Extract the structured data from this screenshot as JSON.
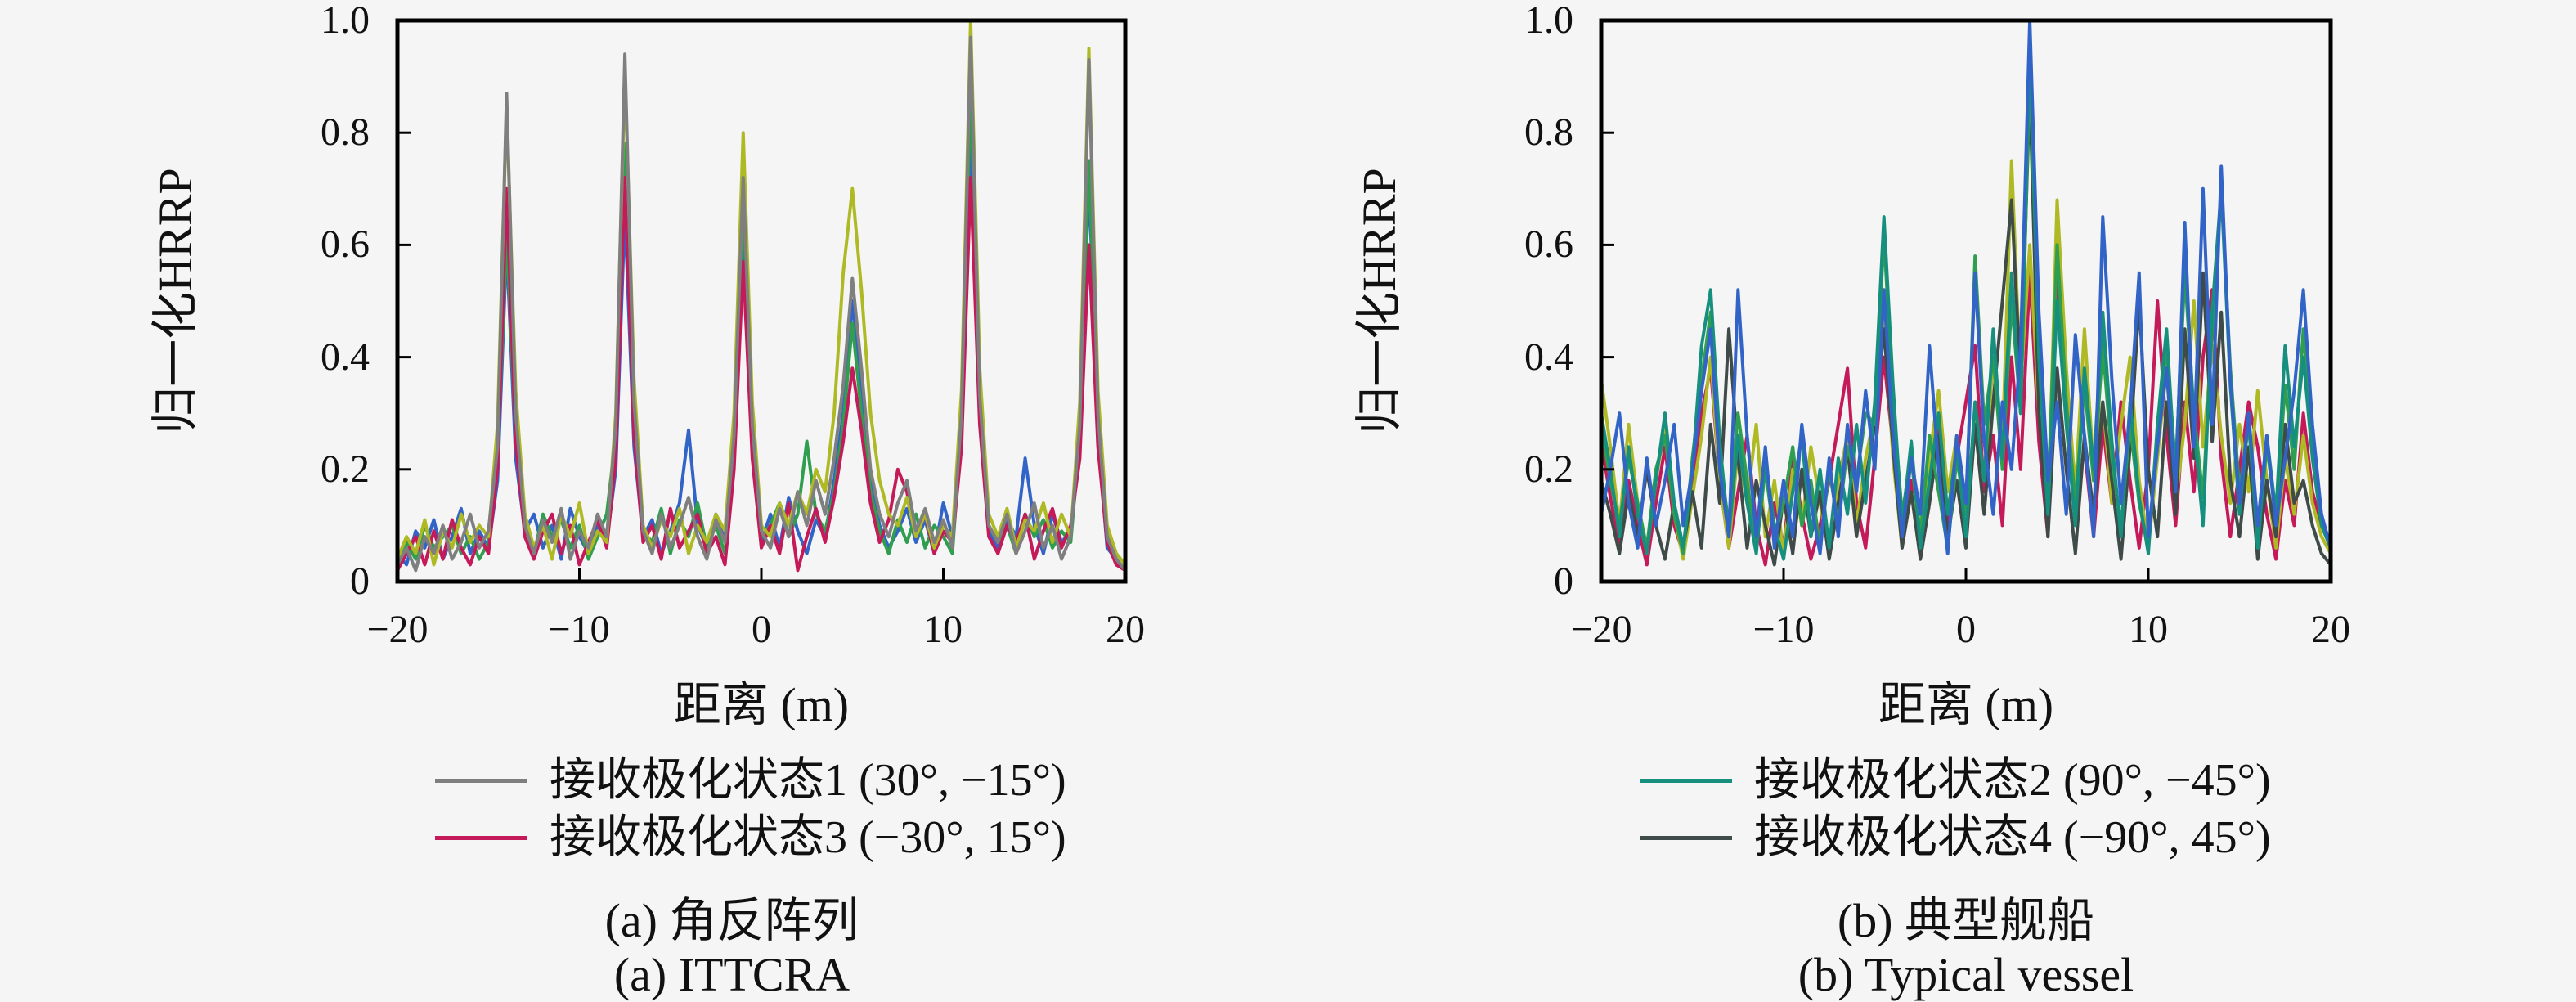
{
  "figure": {
    "background": "#f5f5f5"
  },
  "charts": [
    {
      "ylabel": "归一化HRRP",
      "xlabel": "距离 (m)",
      "yticks": [
        "0",
        "0.2",
        "0.4",
        "0.6",
        "0.8",
        "1.0"
      ],
      "xticks": [
        "−20",
        "−10",
        "0",
        "10",
        "20"
      ],
      "legend": [
        {
          "label": "接收极化状态1 (30°, −15°)",
          "color": "#7f7f7f"
        },
        {
          "label": "接收极化状态3 (−30°, 15°)",
          "color": "#c41a5a"
        }
      ],
      "caption_zh": "(a) 角反阵列",
      "caption_en": "(a) ITTCRA"
    },
    {
      "ylabel": "归一化HRRP",
      "xlabel": "距离 (m)",
      "yticks": [
        "0",
        "0.2",
        "0.4",
        "0.6",
        "0.8",
        "1.0"
      ],
      "xticks": [
        "−20",
        "−10",
        "0",
        "10",
        "20"
      ],
      "legend": [
        {
          "label": "接收极化状态2 (90°, −45°)",
          "color": "#178f7f"
        },
        {
          "label": "接收极化状态4 (−90°, 45°)",
          "color": "#3f4b49"
        }
      ],
      "caption_zh": "(b) 典型舰船",
      "caption_en": "(b) Typical vessel"
    }
  ],
  "chart_data": [
    {
      "type": "line",
      "title": "(a) 角反阵列 (a) ITTCRA",
      "xlabel": "距离 (m)",
      "ylabel": "归一化HRRP",
      "xlim": [
        -20,
        20
      ],
      "ylim": [
        0,
        1
      ],
      "x_start": -20,
      "x_step": 0.5,
      "legend_position": "below",
      "grid": false,
      "series": [
        {
          "name": "接收极化状态1 (30°, −15°)",
          "color": "#7f7f7f",
          "values": [
            0.03,
            0.06,
            0.02,
            0.08,
            0.05,
            0.1,
            0.04,
            0.07,
            0.12,
            0.06,
            0.09,
            0.24,
            0.87,
            0.3,
            0.1,
            0.05,
            0.11,
            0.07,
            0.13,
            0.04,
            0.09,
            0.06,
            0.12,
            0.08,
            0.28,
            0.94,
            0.32,
            0.09,
            0.05,
            0.12,
            0.06,
            0.1,
            0.15,
            0.08,
            0.04,
            0.11,
            0.07,
            0.26,
            0.72,
            0.28,
            0.09,
            0.06,
            0.13,
            0.08,
            0.16,
            0.1,
            0.18,
            0.12,
            0.22,
            0.35,
            0.54,
            0.38,
            0.2,
            0.12,
            0.08,
            0.14,
            0.18,
            0.09,
            0.13,
            0.07,
            0.11,
            0.06,
            0.3,
            0.97,
            0.33,
            0.1,
            0.07,
            0.12,
            0.05,
            0.09,
            0.14,
            0.06,
            0.1,
            0.04,
            0.08,
            0.28,
            0.93,
            0.3,
            0.08,
            0.04,
            0.02
          ]
        },
        {
          "name": "接收极化状态3 (−30°, 15°)",
          "color": "#c41a5a",
          "values": [
            0.02,
            0.05,
            0.08,
            0.03,
            0.09,
            0.04,
            0.11,
            0.06,
            0.03,
            0.08,
            0.05,
            0.2,
            0.7,
            0.25,
            0.08,
            0.04,
            0.09,
            0.12,
            0.05,
            0.1,
            0.03,
            0.07,
            0.11,
            0.06,
            0.22,
            0.72,
            0.26,
            0.07,
            0.1,
            0.04,
            0.13,
            0.06,
            0.09,
            0.12,
            0.05,
            0.08,
            0.03,
            0.2,
            0.57,
            0.22,
            0.06,
            0.1,
            0.05,
            0.14,
            0.02,
            0.08,
            0.13,
            0.07,
            0.15,
            0.25,
            0.38,
            0.27,
            0.14,
            0.07,
            0.11,
            0.2,
            0.16,
            0.08,
            0.12,
            0.05,
            0.09,
            0.07,
            0.24,
            0.72,
            0.28,
            0.08,
            0.05,
            0.1,
            0.07,
            0.12,
            0.04,
            0.09,
            0.13,
            0.06,
            0.1,
            0.22,
            0.6,
            0.24,
            0.07,
            0.03,
            0.02
          ]
        },
        {
          "name": "series-olive (unlabeled)",
          "color": "#aeb923",
          "values": [
            0.04,
            0.08,
            0.05,
            0.11,
            0.03,
            0.09,
            0.06,
            0.12,
            0.07,
            0.1,
            0.08,
            0.28,
            0.85,
            0.34,
            0.12,
            0.06,
            0.1,
            0.04,
            0.12,
            0.08,
            0.14,
            0.05,
            0.09,
            0.07,
            0.3,
            0.91,
            0.36,
            0.1,
            0.06,
            0.11,
            0.08,
            0.13,
            0.05,
            0.1,
            0.07,
            0.12,
            0.09,
            0.3,
            0.8,
            0.32,
            0.1,
            0.08,
            0.14,
            0.1,
            0.16,
            0.12,
            0.2,
            0.16,
            0.3,
            0.55,
            0.7,
            0.52,
            0.3,
            0.18,
            0.12,
            0.1,
            0.15,
            0.08,
            0.12,
            0.06,
            0.1,
            0.08,
            0.34,
            1.0,
            0.38,
            0.12,
            0.08,
            0.13,
            0.06,
            0.11,
            0.09,
            0.14,
            0.07,
            0.12,
            0.08,
            0.32,
            0.95,
            0.34,
            0.1,
            0.05,
            0.03
          ]
        },
        {
          "name": "series-blue (unlabeled)",
          "color": "#3264c8",
          "values": [
            0.05,
            0.03,
            0.09,
            0.06,
            0.11,
            0.04,
            0.08,
            0.13,
            0.05,
            0.09,
            0.06,
            0.18,
            0.6,
            0.22,
            0.09,
            0.12,
            0.06,
            0.1,
            0.04,
            0.13,
            0.08,
            0.05,
            0.1,
            0.07,
            0.2,
            0.66,
            0.24,
            0.08,
            0.11,
            0.05,
            0.09,
            0.14,
            0.27,
            0.1,
            0.06,
            0.12,
            0.08,
            0.22,
            0.62,
            0.24,
            0.07,
            0.12,
            0.06,
            0.15,
            0.09,
            0.05,
            0.11,
            0.08,
            0.18,
            0.3,
            0.5,
            0.34,
            0.18,
            0.1,
            0.06,
            0.09,
            0.13,
            0.07,
            0.11,
            0.05,
            0.14,
            0.08,
            0.26,
            0.8,
            0.3,
            0.09,
            0.06,
            0.11,
            0.08,
            0.22,
            0.1,
            0.05,
            0.12,
            0.07,
            0.09,
            0.24,
            0.72,
            0.26,
            0.06,
            0.04,
            0.02
          ]
        },
        {
          "name": "series-green (unlabeled)",
          "color": "#2f9e4f",
          "values": [
            0.03,
            0.07,
            0.04,
            0.1,
            0.06,
            0.08,
            0.1,
            0.05,
            0.08,
            0.04,
            0.07,
            0.22,
            0.62,
            0.26,
            0.1,
            0.05,
            0.12,
            0.08,
            0.11,
            0.06,
            0.1,
            0.04,
            0.08,
            0.12,
            0.26,
            0.78,
            0.3,
            0.09,
            0.07,
            0.13,
            0.05,
            0.11,
            0.08,
            0.14,
            0.06,
            0.1,
            0.05,
            0.24,
            0.68,
            0.26,
            0.08,
            0.1,
            0.14,
            0.08,
            0.12,
            0.25,
            0.12,
            0.09,
            0.16,
            0.28,
            0.46,
            0.3,
            0.16,
            0.09,
            0.05,
            0.11,
            0.07,
            0.12,
            0.06,
            0.1,
            0.08,
            0.05,
            0.28,
            0.88,
            0.32,
            0.1,
            0.07,
            0.1,
            0.05,
            0.12,
            0.08,
            0.11,
            0.06,
            0.09,
            0.07,
            0.26,
            0.75,
            0.28,
            0.09,
            0.05,
            0.03
          ]
        }
      ]
    },
    {
      "type": "line",
      "title": "(b) 典型舰船 (b) Typical vessel",
      "xlabel": "距离 (m)",
      "ylabel": "归一化HRRP",
      "xlim": [
        -20,
        20
      ],
      "ylim": [
        0,
        1
      ],
      "x_start": -20,
      "x_step": 0.5,
      "legend_position": "below",
      "grid": false,
      "series": [
        {
          "name": "接收极化状态2 (90°, −45°)",
          "color": "#178f7f",
          "values": [
            0.3,
            0.2,
            0.08,
            0.24,
            0.12,
            0.05,
            0.18,
            0.3,
            0.14,
            0.06,
            0.2,
            0.42,
            0.52,
            0.25,
            0.08,
            0.26,
            0.14,
            0.05,
            0.22,
            0.1,
            0.04,
            0.16,
            0.26,
            0.08,
            0.2,
            0.06,
            0.22,
            0.12,
            0.28,
            0.14,
            0.32,
            0.65,
            0.35,
            0.1,
            0.25,
            0.06,
            0.18,
            0.3,
            0.12,
            0.24,
            0.08,
            0.32,
            0.18,
            0.45,
            0.22,
            0.55,
            0.3,
            0.97,
            0.4,
            0.12,
            0.5,
            0.28,
            0.1,
            0.38,
            0.2,
            0.48,
            0.25,
            0.08,
            0.32,
            0.15,
            0.05,
            0.28,
            0.45,
            0.18,
            0.6,
            0.28,
            0.1,
            0.48,
            0.7,
            0.35,
            0.12,
            0.3,
            0.06,
            0.26,
            0.12,
            0.42,
            0.24,
            0.4,
            0.22,
            0.1,
            0.06
          ]
        },
        {
          "name": "接收极化状态4 (−90°, 45°)",
          "color": "#3f4b49",
          "values": [
            0.18,
            0.12,
            0.05,
            0.16,
            0.08,
            0.2,
            0.1,
            0.04,
            0.14,
            0.06,
            0.16,
            0.06,
            0.28,
            0.14,
            0.45,
            0.22,
            0.06,
            0.18,
            0.1,
            0.03,
            0.15,
            0.05,
            0.2,
            0.08,
            0.16,
            0.04,
            0.14,
            0.24,
            0.08,
            0.18,
            0.28,
            0.45,
            0.24,
            0.06,
            0.16,
            0.04,
            0.14,
            0.26,
            0.08,
            0.18,
            0.06,
            0.28,
            0.12,
            0.32,
            0.5,
            0.68,
            0.35,
            0.88,
            0.3,
            0.08,
            0.38,
            0.2,
            0.05,
            0.26,
            0.12,
            0.32,
            0.18,
            0.04,
            0.24,
            0.5,
            0.2,
            0.08,
            0.32,
            0.12,
            0.45,
            0.22,
            0.55,
            0.25,
            0.48,
            0.18,
            0.08,
            0.24,
            0.04,
            0.18,
            0.08,
            0.28,
            0.14,
            0.18,
            0.1,
            0.05,
            0.03
          ]
        },
        {
          "name": "series-crimson (unlabeled)",
          "color": "#c41a5a",
          "values": [
            0.25,
            0.15,
            0.06,
            0.18,
            0.1,
            0.03,
            0.14,
            0.24,
            0.1,
            0.05,
            0.16,
            0.3,
            0.38,
            0.18,
            0.06,
            0.16,
            0.26,
            0.1,
            0.03,
            0.14,
            0.06,
            0.22,
            0.12,
            0.04,
            0.1,
            0.18,
            0.28,
            0.38,
            0.14,
            0.06,
            0.22,
            0.4,
            0.24,
            0.08,
            0.18,
            0.04,
            0.16,
            0.28,
            0.1,
            0.22,
            0.32,
            0.42,
            0.16,
            0.26,
            0.1,
            0.4,
            0.2,
            0.55,
            0.25,
            0.08,
            0.55,
            0.3,
            0.12,
            0.24,
            0.08,
            0.28,
            0.14,
            0.32,
            0.18,
            0.06,
            0.2,
            0.5,
            0.26,
            0.1,
            0.32,
            0.16,
            0.4,
            0.52,
            0.22,
            0.08,
            0.2,
            0.32,
            0.24,
            0.12,
            0.04,
            0.18,
            0.1,
            0.3,
            0.16,
            0.1,
            0.07
          ]
        },
        {
          "name": "series-blue (unlabeled)",
          "color": "#3264c8",
          "values": [
            0.12,
            0.2,
            0.3,
            0.14,
            0.06,
            0.22,
            0.1,
            0.18,
            0.28,
            0.1,
            0.2,
            0.34,
            0.45,
            0.2,
            0.08,
            0.52,
            0.26,
            0.08,
            0.24,
            0.06,
            0.18,
            0.08,
            0.28,
            0.14,
            0.05,
            0.22,
            0.08,
            0.28,
            0.16,
            0.34,
            0.2,
            0.52,
            0.26,
            0.08,
            0.22,
            0.12,
            0.42,
            0.2,
            0.05,
            0.26,
            0.14,
            0.55,
            0.25,
            0.12,
            0.32,
            0.2,
            0.42,
            1.0,
            0.48,
            0.18,
            0.32,
            0.12,
            0.44,
            0.26,
            0.08,
            0.65,
            0.36,
            0.14,
            0.3,
            0.55,
            0.08,
            0.24,
            0.38,
            0.16,
            0.64,
            0.24,
            0.7,
            0.28,
            0.74,
            0.36,
            0.14,
            0.3,
            0.1,
            0.26,
            0.1,
            0.22,
            0.34,
            0.52,
            0.28,
            0.12,
            0.06
          ]
        },
        {
          "name": "series-olive (unlabeled)",
          "color": "#aeb923",
          "values": [
            0.36,
            0.24,
            0.1,
            0.28,
            0.14,
            0.05,
            0.18,
            0.28,
            0.12,
            0.04,
            0.15,
            0.26,
            0.4,
            0.18,
            0.06,
            0.24,
            0.14,
            0.28,
            0.08,
            0.18,
            0.05,
            0.2,
            0.1,
            0.24,
            0.14,
            0.05,
            0.18,
            0.26,
            0.1,
            0.22,
            0.3,
            0.48,
            0.22,
            0.06,
            0.16,
            0.1,
            0.22,
            0.34,
            0.16,
            0.26,
            0.12,
            0.3,
            0.18,
            0.4,
            0.24,
            0.75,
            0.35,
            0.6,
            0.3,
            0.12,
            0.68,
            0.38,
            0.16,
            0.45,
            0.2,
            0.32,
            0.14,
            0.28,
            0.4,
            0.18,
            0.06,
            0.22,
            0.38,
            0.14,
            0.28,
            0.5,
            0.24,
            0.42,
            0.26,
            0.14,
            0.28,
            0.16,
            0.34,
            0.18,
            0.06,
            0.22,
            0.12,
            0.26,
            0.14,
            0.08,
            0.05
          ]
        },
        {
          "name": "series-green (unlabeled)",
          "color": "#2f9e4f",
          "values": [
            0.28,
            0.18,
            0.1,
            0.22,
            0.14,
            0.06,
            0.2,
            0.26,
            0.12,
            0.05,
            0.22,
            0.36,
            0.48,
            0.22,
            0.1,
            0.3,
            0.18,
            0.06,
            0.2,
            0.08,
            0.14,
            0.24,
            0.1,
            0.18,
            0.06,
            0.2,
            0.1,
            0.24,
            0.18,
            0.3,
            0.28,
            0.62,
            0.32,
            0.12,
            0.22,
            0.08,
            0.26,
            0.16,
            0.06,
            0.22,
            0.12,
            0.58,
            0.28,
            0.4,
            0.2,
            0.5,
            0.3,
            0.92,
            0.42,
            0.15,
            0.6,
            0.32,
            0.14,
            0.35,
            0.18,
            0.42,
            0.22,
            0.1,
            0.28,
            0.14,
            0.06,
            0.26,
            0.42,
            0.2,
            0.55,
            0.3,
            0.15,
            0.45,
            0.7,
            0.38,
            0.16,
            0.28,
            0.08,
            0.24,
            0.12,
            0.35,
            0.2,
            0.45,
            0.24,
            0.1,
            0.06
          ]
        }
      ]
    }
  ]
}
